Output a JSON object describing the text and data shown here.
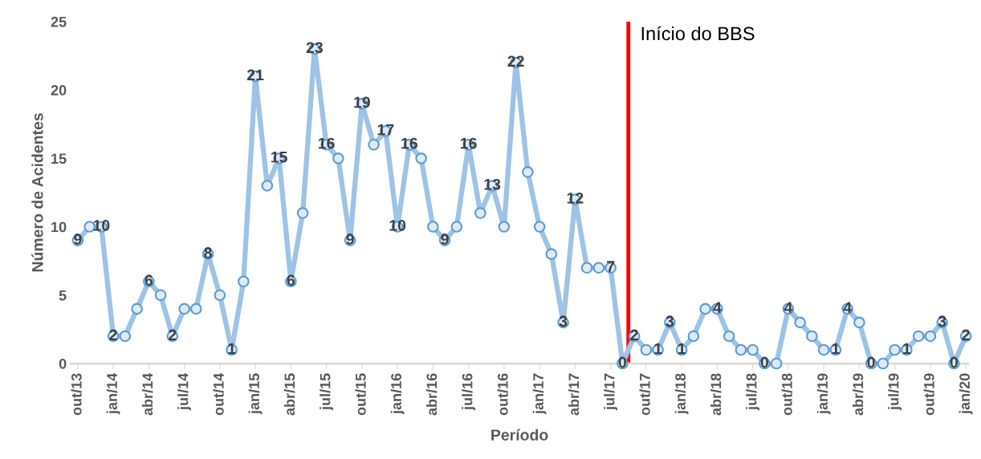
{
  "chart_data": {
    "type": "line",
    "xlabel": "Período",
    "ylabel": "Número de Acidentes",
    "categories": [
      "out/13",
      null,
      null,
      "jan/14",
      null,
      null,
      "abr/14",
      null,
      null,
      "jul/14",
      null,
      null,
      "out/14",
      null,
      null,
      "jan/15",
      null,
      null,
      "abr/15",
      null,
      null,
      "jul/15",
      null,
      null,
      "out/15",
      null,
      null,
      "jan/16",
      null,
      null,
      "abr/16",
      null,
      null,
      "jul/16",
      null,
      null,
      "out/16",
      null,
      null,
      "jan/17",
      null,
      null,
      "abr/17",
      null,
      null,
      "jul/17",
      null,
      null,
      "out/17",
      null,
      null,
      "jan/18",
      null,
      null,
      "abr/18",
      null,
      null,
      "jul/18",
      null,
      null,
      "out/18",
      null,
      null,
      "jan/19",
      null,
      null,
      "abr/19",
      null,
      null,
      "jul/19",
      null,
      null,
      "out/19",
      null,
      null,
      "jan/20"
    ],
    "series": [
      {
        "color": "#9dc3e6",
        "values": [
          9,
          10,
          10,
          2,
          2,
          4,
          6,
          5,
          2,
          4,
          4,
          8,
          5,
          1,
          6,
          21,
          13,
          15,
          6,
          11,
          23,
          16,
          15,
          9,
          19,
          16,
          17,
          10,
          16,
          15,
          10,
          9,
          10,
          16,
          11,
          13,
          10,
          22,
          14,
          10,
          8,
          3,
          12,
          7,
          7,
          7,
          0,
          2,
          1,
          1,
          3,
          1,
          2,
          4,
          4,
          2,
          1,
          1,
          0,
          0,
          4,
          3,
          2,
          1,
          1,
          4,
          3,
          0,
          0,
          1,
          1,
          2,
          2,
          3,
          0,
          2
        ],
        "value_labels": [
          "9",
          null,
          "10",
          "2",
          null,
          null,
          "6",
          null,
          "2",
          null,
          null,
          "8",
          null,
          "1",
          null,
          "21",
          null,
          "15",
          "6",
          null,
          "23",
          "16",
          null,
          "9",
          "19",
          null,
          "17",
          "10",
          "16",
          null,
          null,
          "9",
          null,
          "16",
          null,
          "13",
          null,
          "22",
          null,
          null,
          null,
          "3",
          "12",
          null,
          null,
          "7",
          "0",
          "2",
          null,
          "1",
          "3",
          "1",
          null,
          null,
          "4",
          null,
          null,
          null,
          "0",
          null,
          "4",
          null,
          null,
          null,
          "1",
          "4",
          null,
          "0",
          null,
          null,
          "1",
          null,
          null,
          "3",
          "0",
          "2"
        ]
      }
    ],
    "ylim": [
      0,
      25
    ],
    "yticks": [
      0,
      5,
      10,
      15,
      20,
      25
    ],
    "grid": false,
    "marker": "circle",
    "line_style": "solid",
    "annotations": [
      "Início do BBS"
    ]
  }
}
